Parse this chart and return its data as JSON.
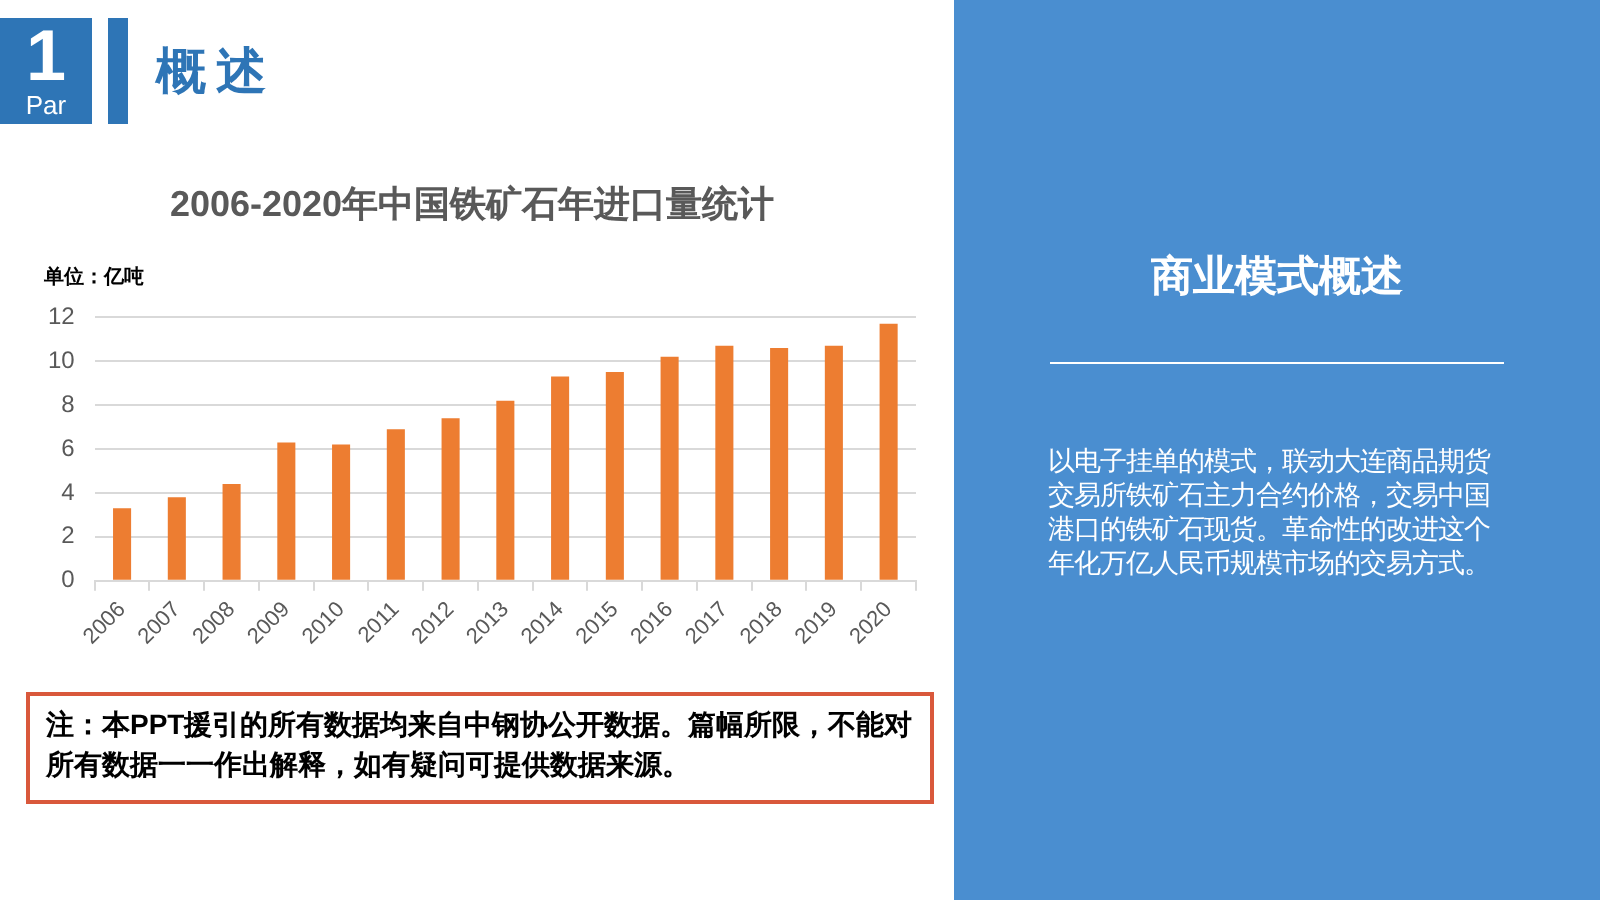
{
  "chart_data": [
    {
      "type": "other",
      "title": "概述",
      "annotations": [
        "1",
        "Par"
      ]
    },
    {
      "type": "bar",
      "title": "2006-2020年中国铁矿石年进口量统计",
      "ylabel": "单位：亿吨",
      "categories": [
        "2006",
        "2007",
        "2008",
        "2009",
        "2010",
        "2011",
        "2012",
        "2013",
        "2014",
        "2015",
        "2016",
        "2017",
        "2018",
        "2019",
        "2020"
      ],
      "values": [
        3.3,
        3.8,
        4.4,
        6.3,
        6.2,
        6.9,
        7.4,
        8.2,
        9.3,
        9.5,
        10.2,
        10.7,
        10.6,
        10.7,
        11.7
      ],
      "color": "#ed7d31",
      "ylim": [
        0,
        12
      ],
      "yticks": [
        0,
        2,
        4,
        6,
        8,
        10,
        12
      ],
      "grid": "y",
      "legend": false,
      "annotations": [
        "注：本PPT援引的所有数据均来自中钢协公开数据。篇幅所限，不能对所有数据一一作出解释，如有疑问可提供数据来源。"
      ]
    },
    {
      "type": "other",
      "title": "商业模式概述",
      "annotations": [
        "以电子挂单的模式，联动大连商品期货交易所铁矿石主力合约价格，交易中国港口的铁矿石现货。革命性的改进这个年化万亿人民币规模市场的交易方式。"
      ]
    }
  ]
}
